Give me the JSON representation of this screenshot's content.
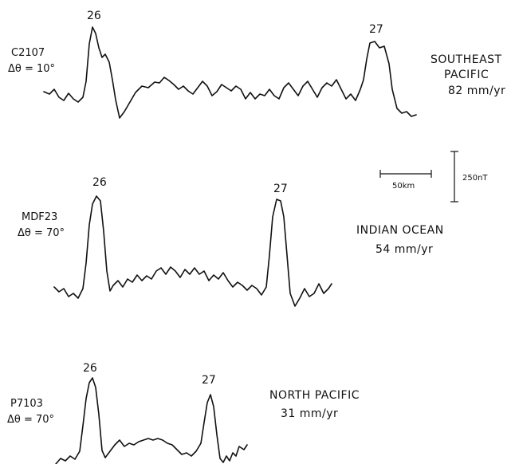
{
  "profiles": [
    {
      "ship": "C2107",
      "delta_theta": "Δθ = 10°",
      "anomaly_left": "26",
      "anomaly_right": "27",
      "region": "SOUTHEAST",
      "region_line2": "PACIFIC",
      "rate": "82 mm/yr"
    },
    {
      "ship": "MDF23",
      "delta_theta": "Δθ = 70°",
      "anomaly_left": "26",
      "anomaly_right": "27",
      "region": "INDIAN OCEAN",
      "rate": "54 mm/yr"
    },
    {
      "ship": "P7103",
      "delta_theta": "Δθ = 70°",
      "anomaly_left": "26",
      "anomaly_right": "27",
      "region": "NORTH PACIFIC",
      "rate": "31 mm/yr"
    }
  ],
  "scale": {
    "distance_label": "50km",
    "amplitude_label": "250nT"
  }
}
